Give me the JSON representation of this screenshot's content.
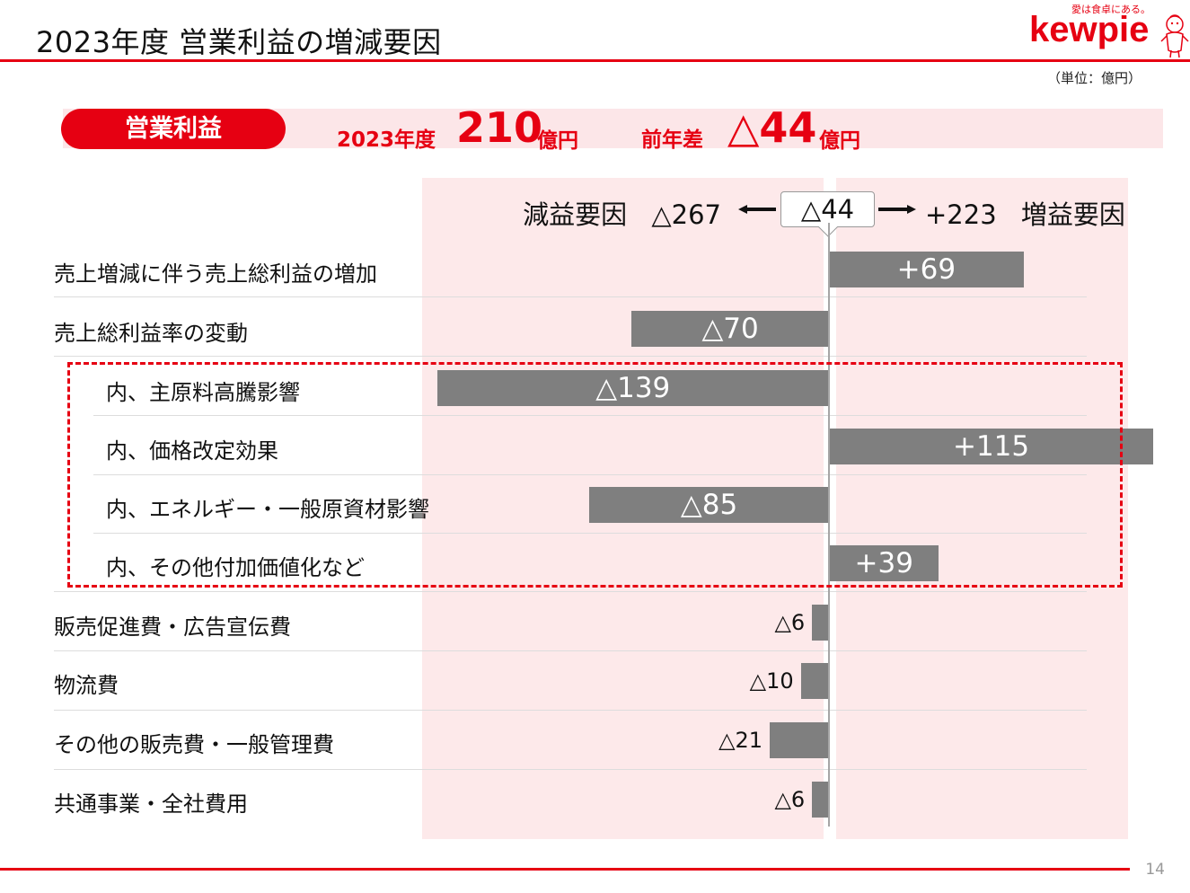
{
  "header": {
    "title": "2023年度 営業利益の増減要因",
    "tagline": "愛は食卓にある。",
    "logo_text": "kewpie",
    "unit_note": "（単位：億円）"
  },
  "summary": {
    "pill": "営業利益",
    "fy_label": "2023年度",
    "fy_value": "210",
    "fy_unit": "億円",
    "diff_label": "前年差",
    "diff_value": "△44",
    "diff_unit": "億円"
  },
  "chart_data": {
    "type": "bar",
    "orientation": "horizontal",
    "title": "",
    "header": {
      "decrease_label": "減益要因",
      "decrease_total": "△267",
      "net": "△44",
      "increase_total": "+223",
      "increase_label": "増益要因"
    },
    "categories": [
      "売上増減に伴う売上総利益の増加",
      "売上総利益率の変動",
      "内、主原料高騰影響",
      "内、価格改定効果",
      "内、エネルギー・一般原資材影響",
      "内、その他付加価値化など",
      "販売促進費・広告宣伝費",
      "物流費",
      "その他の販売費・一般管理費",
      "共通事業・全社費用"
    ],
    "values": [
      69,
      -70,
      -139,
      115,
      -85,
      39,
      -6,
      -10,
      -21,
      -6
    ],
    "value_labels": [
      "+69",
      "△70",
      "△139",
      "+115",
      "△85",
      "+39",
      "△6",
      "△10",
      "△21",
      "△6"
    ],
    "sub_item": [
      false,
      false,
      true,
      true,
      true,
      true,
      false,
      false,
      false,
      false
    ],
    "label_position": [
      "inside",
      "inside",
      "inside",
      "inside",
      "inside",
      "inside",
      "outside",
      "outside",
      "outside",
      "outside"
    ],
    "xlim": [
      -140,
      116
    ],
    "bar_color": "#7f7f7f",
    "panel_color": "#fde9ea",
    "accent_color": "#e60012"
  },
  "footer": {
    "page": "14"
  }
}
